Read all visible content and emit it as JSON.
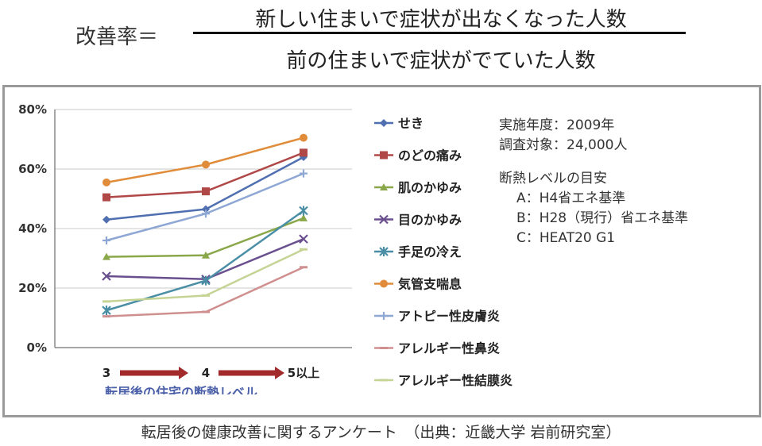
{
  "formula": {
    "label": "改善率＝",
    "numerator": "新しい住まいで症状が出なくなった人数",
    "denominator": "前の住まいで症状がでていた人数"
  },
  "info": {
    "line1": "実施年度：2009年",
    "line2": "調査対象：24,000人",
    "line3": "断熱レベルの目安",
    "line4": "A：H4省エネ基準",
    "line5": "B：H28（現行）省エネ基準",
    "line6": "C：HEAT20 G1"
  },
  "caption": "転居後の健康改善に関するアンケート　（出典：近畿大学 岩前研究室）",
  "chart_data": {
    "type": "line",
    "categories": [
      "3",
      "4",
      "5以上"
    ],
    "xlabel": "転居後の住宅の断熱レベル",
    "ylim": [
      0,
      80
    ],
    "yticks": [
      0,
      20,
      40,
      60,
      80
    ],
    "ytick_labels": [
      "0%",
      "20%",
      "40%",
      "60%",
      "80%"
    ],
    "grid": true,
    "legend_position": "right",
    "series": [
      {
        "name": "せき",
        "values": [
          43,
          46.5,
          64
        ],
        "color": "#4f6fb0",
        "marker": "diamond"
      },
      {
        "name": "のどの痛み",
        "values": [
          50.5,
          52.5,
          65.5
        ],
        "color": "#b04848",
        "marker": "square"
      },
      {
        "name": "肌のかゆみ",
        "values": [
          30.5,
          31,
          43.5
        ],
        "color": "#8aa84a",
        "marker": "triangle"
      },
      {
        "name": "目のかゆみ",
        "values": [
          24,
          23,
          36.5
        ],
        "color": "#6a4f8f",
        "marker": "x"
      },
      {
        "name": "手足の冷え",
        "values": [
          12.5,
          22.5,
          46
        ],
        "color": "#4a8ea6",
        "marker": "star"
      },
      {
        "name": "気管支喘息",
        "values": [
          55.5,
          61.5,
          70.5
        ],
        "color": "#e08c3a",
        "marker": "circle"
      },
      {
        "name": "アトピー性皮膚炎",
        "values": [
          36,
          45,
          58.5
        ],
        "color": "#8fa7d4",
        "marker": "plus"
      },
      {
        "name": "アレルギー性鼻炎",
        "values": [
          10.5,
          12,
          27
        ],
        "color": "#d08f8f",
        "marker": "dash"
      },
      {
        "name": "アレルギー性結膜炎",
        "values": [
          15.5,
          17.5,
          33
        ],
        "color": "#c5d495",
        "marker": "dash"
      }
    ]
  }
}
